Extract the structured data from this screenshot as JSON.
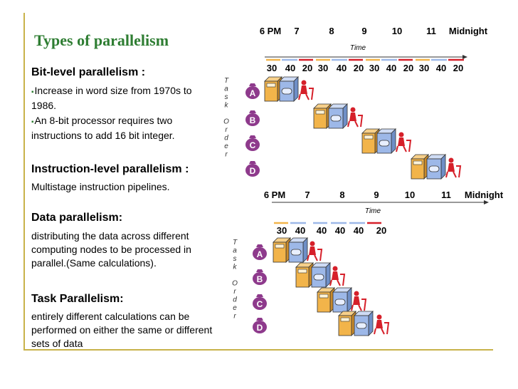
{
  "title": "Types of parallelism",
  "sections": [
    {
      "heading": "Bit-level parallelism :",
      "bullets": [
        "Increase in word size from 1970s to 1986.",
        "An 8-bit processor requires two instructions to add 16 bit integer."
      ]
    },
    {
      "heading": "Instruction-level parallelism :",
      "text": "Multistage instruction pipelines."
    },
    {
      "heading": "Data parallelism:",
      "text": "distributing the data across different computing nodes to be processed in parallel.(Same calculations)."
    },
    {
      "heading": "Task Parallelism:",
      "text": "entirely different calculations can be performed on either the same or different sets of data"
    }
  ],
  "diagram_top": {
    "hours": [
      "6 PM",
      "7",
      "8",
      "9",
      "10",
      "11",
      "Midnight"
    ],
    "time_label": "Time",
    "durations": [
      "30",
      "40",
      "20",
      "30",
      "40",
      "20",
      "30",
      "40",
      "20",
      "30",
      "40",
      "20"
    ],
    "tasks": [
      "A",
      "B",
      "C",
      "D"
    ],
    "axis_label": [
      "T",
      "a",
      "s",
      "k",
      "",
      "O",
      "r",
      "d",
      "e",
      "r"
    ]
  },
  "diagram_bottom": {
    "hours": [
      "6 PM",
      "7",
      "8",
      "9",
      "10",
      "11",
      "Midnight"
    ],
    "time_label": "Time",
    "durations": [
      "30",
      "40",
      "40",
      "40",
      "40",
      "20"
    ],
    "tasks": [
      "A",
      "B",
      "C",
      "D"
    ],
    "axis_label": [
      "T",
      "a",
      "s",
      "k",
      "",
      "O",
      "r",
      "d",
      "e",
      "r"
    ]
  },
  "colors": {
    "title": "#2e7d32",
    "washer": "#f2b44a",
    "dryer": "#9db8e8",
    "folder": "#d6202a",
    "bag": "#8e3a8c",
    "frame": "#c8b24a"
  }
}
